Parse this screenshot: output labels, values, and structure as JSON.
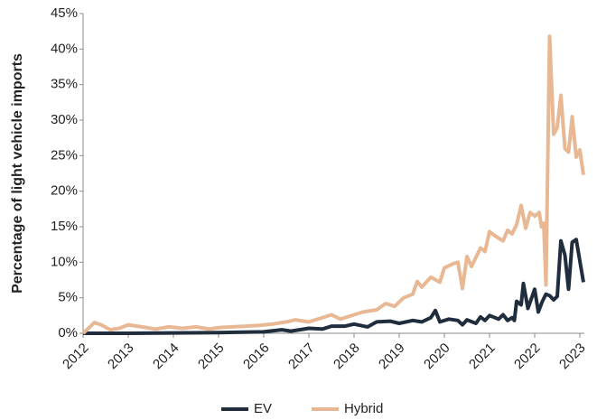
{
  "chart_data": {
    "type": "line",
    "y_label": "Percentage of light vehicle imports",
    "xlim": [
      2012,
      2023.1
    ],
    "xticks": [
      2012,
      2013,
      2014,
      2015,
      2016,
      2017,
      2018,
      2019,
      2020,
      2021,
      2022,
      2023
    ],
    "ylim": [
      0,
      45
    ],
    "yticks": [
      {
        "value": 0,
        "label": "0%"
      },
      {
        "value": 5,
        "label": "5%"
      },
      {
        "value": 10,
        "label": "10%"
      },
      {
        "value": 15,
        "label": "15%"
      },
      {
        "value": 20,
        "label": "20%"
      },
      {
        "value": 25,
        "label": "25%"
      },
      {
        "value": 30,
        "label": "30%"
      },
      {
        "value": 35,
        "label": "35%"
      },
      {
        "value": 40,
        "label": "40%"
      },
      {
        "value": 45,
        "label": "45%"
      }
    ],
    "grid": false,
    "legend": "bottom",
    "series": [
      {
        "name": "EV",
        "color": "#1f2d3d",
        "x": [
          2012.0,
          2013.0,
          2014.0,
          2015.0,
          2016.0,
          2016.4,
          2016.6,
          2017.0,
          2017.3,
          2017.5,
          2017.8,
          2018.0,
          2018.3,
          2018.5,
          2018.8,
          2019.0,
          2019.3,
          2019.5,
          2019.7,
          2019.8,
          2019.9,
          2020.1,
          2020.3,
          2020.4,
          2020.5,
          2020.7,
          2020.8,
          2020.9,
          2021.0,
          2021.2,
          2021.3,
          2021.4,
          2021.5,
          2021.55,
          2021.6,
          2021.7,
          2021.75,
          2021.85,
          2022.0,
          2022.08,
          2022.17,
          2022.25,
          2022.33,
          2022.42,
          2022.5,
          2022.58,
          2022.67,
          2022.75,
          2022.83,
          2022.92,
          2023.08
        ],
        "values": [
          0,
          0,
          0.05,
          0.1,
          0.2,
          0.5,
          0.3,
          0.7,
          0.6,
          1.0,
          1.0,
          1.3,
          0.9,
          1.6,
          1.7,
          1.4,
          1.8,
          1.6,
          2.2,
          3.2,
          1.6,
          2.0,
          1.8,
          1.2,
          1.9,
          1.4,
          2.3,
          1.8,
          2.5,
          2.0,
          2.6,
          1.8,
          2.2,
          1.8,
          4.5,
          4.0,
          7.0,
          3.5,
          6.2,
          3.0,
          4.5,
          5.5,
          5.3,
          4.7,
          5.2,
          13.0,
          11.0,
          6.2,
          12.8,
          13.2,
          7.2
        ]
      },
      {
        "name": "Hybrid",
        "color": "#e8b894",
        "x": [
          2012.0,
          2012.25,
          2012.4,
          2012.6,
          2012.8,
          2013.0,
          2013.3,
          2013.6,
          2013.9,
          2014.2,
          2014.5,
          2014.8,
          2015.0,
          2015.3,
          2015.6,
          2015.9,
          2016.2,
          2016.5,
          2016.7,
          2017.0,
          2017.3,
          2017.5,
          2017.7,
          2018.0,
          2018.2,
          2018.5,
          2018.7,
          2018.9,
          2019.1,
          2019.3,
          2019.4,
          2019.5,
          2019.7,
          2019.9,
          2020.0,
          2020.2,
          2020.3,
          2020.4,
          2020.5,
          2020.6,
          2020.8,
          2020.9,
          2021.0,
          2021.1,
          2021.3,
          2021.4,
          2021.5,
          2021.6,
          2021.7,
          2021.8,
          2021.9,
          2022.0,
          2022.1,
          2022.15,
          2022.2,
          2022.25,
          2022.33,
          2022.42,
          2022.5,
          2022.58,
          2022.67,
          2022.75,
          2022.83,
          2022.92,
          2023.0,
          2023.08
        ],
        "values": [
          0,
          1.5,
          1.2,
          0.5,
          0.7,
          1.2,
          0.9,
          0.6,
          0.9,
          0.7,
          0.9,
          0.6,
          0.8,
          0.9,
          1.0,
          1.1,
          1.3,
          1.6,
          1.9,
          1.6,
          2.2,
          2.6,
          2.0,
          2.6,
          3.0,
          3.3,
          4.2,
          3.8,
          5.0,
          5.5,
          7.3,
          6.5,
          7.9,
          7.2,
          9.2,
          9.8,
          10.0,
          6.3,
          10.8,
          9.4,
          12.0,
          11.5,
          14.3,
          13.8,
          13.0,
          14.5,
          14.0,
          15.3,
          18.0,
          14.8,
          17.0,
          16.5,
          17.0,
          15.0,
          15.5,
          6.8,
          41.8,
          28.0,
          29.0,
          33.5,
          26.0,
          25.5,
          30.5,
          24.8,
          25.8,
          22.3
        ]
      }
    ]
  }
}
